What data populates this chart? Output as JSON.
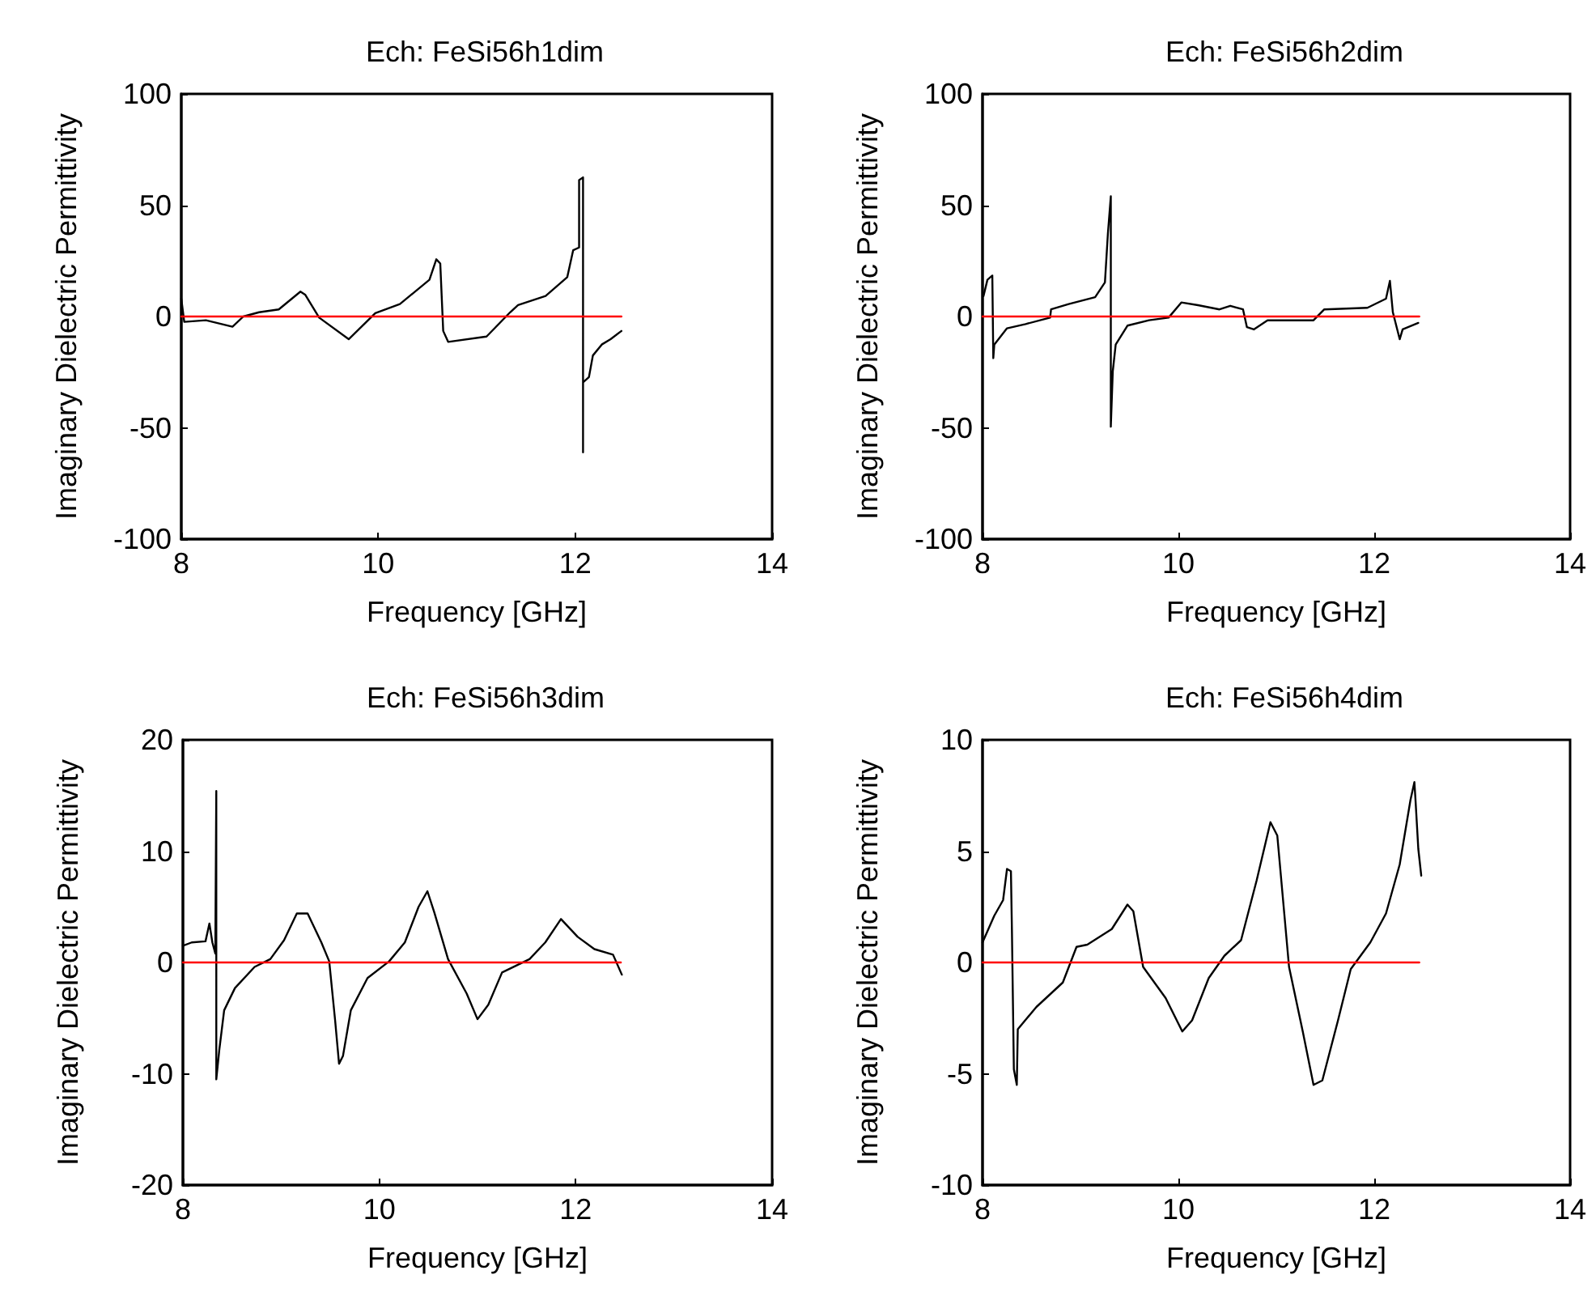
{
  "chart_data": [
    {
      "type": "line",
      "title": "Ech: FeSi56h1dim",
      "xlabel": "Frequency [GHz]",
      "ylabel": "Imaginary Dielectric Permittivity",
      "xlim": [
        8,
        14
      ],
      "xticks": [
        8,
        10,
        12,
        14
      ],
      "ylim": [
        -100,
        100
      ],
      "yticks": [
        -100,
        -50,
        0,
        50,
        100
      ],
      "grid": false,
      "marker": "none",
      "line_style": "solid",
      "series": [
        {
          "color": "#000000",
          "x": [
            8.0,
            8.03,
            8.25,
            8.52,
            8.63,
            8.79,
            8.99,
            9.21,
            9.26,
            9.4,
            9.7,
            9.97,
            10.22,
            10.52,
            10.59,
            10.63,
            10.66,
            10.71,
            11.1,
            11.34,
            11.42,
            11.7,
            11.92,
            11.98,
            12.04,
            12.04,
            12.08,
            12.08,
            12.08,
            12.14,
            12.18,
            12.27,
            12.36,
            12.47
          ],
          "values": [
            8,
            -2.4,
            -1.7,
            -4.6,
            0,
            1.9,
            3.2,
            11.2,
            9.7,
            -0.5,
            -10.2,
            1.5,
            5.6,
            16.5,
            25.7,
            23.8,
            -6.5,
            -11.4,
            -9,
            1.9,
            5.1,
            9.2,
            17.7,
            29.8,
            31,
            61.3,
            62.5,
            -61,
            -29.6,
            -27.2,
            -17.5,
            -12.6,
            -10.2,
            -6.5
          ]
        },
        {
          "color": "#ff0000",
          "x": [
            8,
            12.47
          ],
          "values": [
            0,
            0
          ]
        }
      ]
    },
    {
      "type": "line",
      "title": "Ech: FeSi56h2dim",
      "xlabel": "Frequency [GHz]",
      "ylabel": "Imaginary Dielectric Permittivity",
      "xlim": [
        8,
        14
      ],
      "xticks": [
        8,
        10,
        12,
        14
      ],
      "ylim": [
        -100,
        100
      ],
      "yticks": [
        -100,
        -50,
        0,
        50,
        100
      ],
      "grid": false,
      "marker": "none",
      "line_style": "solid",
      "series": [
        {
          "color": "#000000",
          "x": [
            8.01,
            8.05,
            8.1,
            8.11,
            8.12,
            8.25,
            8.44,
            8.69,
            8.7,
            8.88,
            9.15,
            9.25,
            9.28,
            9.31,
            9.31,
            9.33,
            9.36,
            9.48,
            9.7,
            9.9,
            10.03,
            10.2,
            10.42,
            10.53,
            10.66,
            10.7,
            10.77,
            10.91,
            11.38,
            11.49,
            11.93,
            12.12,
            12.16,
            12.19,
            12.26,
            12.29,
            12.45
          ],
          "values": [
            9.2,
            16.5,
            18.4,
            -18.7,
            -12.6,
            -5.3,
            -3.4,
            -0.5,
            3.2,
            5.6,
            8.7,
            15.3,
            37.1,
            54,
            -49.5,
            -24.7,
            -12.6,
            -4.1,
            -1.7,
            -0.5,
            6.3,
            5.1,
            3.2,
            4.8,
            3.2,
            -4.8,
            -5.8,
            -1.7,
            -1.7,
            3.2,
            3.9,
            8,
            16,
            1.9,
            -10.2,
            -5.8,
            -2.9
          ]
        },
        {
          "color": "#ff0000",
          "x": [
            8,
            12.46
          ],
          "values": [
            0,
            0
          ]
        }
      ]
    },
    {
      "type": "line",
      "title": "Ech: FeSi56h3dim",
      "xlabel": "Frequency [GHz]",
      "ylabel": "Imaginary Dielectric Permittivity",
      "xlim": [
        8,
        14
      ],
      "xticks": [
        8,
        10,
        12,
        14
      ],
      "ylim": [
        -20,
        20
      ],
      "yticks": [
        -20,
        -10,
        0,
        10,
        20
      ],
      "grid": false,
      "marker": "none",
      "line_style": "solid",
      "series": [
        {
          "color": "#000000",
          "x": [
            8.0,
            8.09,
            8.23,
            8.27,
            8.3,
            8.33,
            8.34,
            8.34,
            8.37,
            8.42,
            8.53,
            8.73,
            8.89,
            9.03,
            9.16,
            9.27,
            9.41,
            9.49,
            9.55,
            9.59,
            9.63,
            9.71,
            9.88,
            10.1,
            10.26,
            10.4,
            10.49,
            10.56,
            10.7,
            10.89,
            11.0,
            11.11,
            11.25,
            11.53,
            11.69,
            11.85,
            12.02,
            12.19,
            12.38,
            12.43,
            12.47
          ],
          "values": [
            1.5,
            1.8,
            1.9,
            3.5,
            1.8,
            0.8,
            15.4,
            -10.5,
            -7.9,
            -4.3,
            -2.3,
            -0.4,
            0.3,
            2,
            4.4,
            4.4,
            1.8,
            0.1,
            -5.2,
            -9.1,
            -8.4,
            -4.3,
            -1.4,
            0.1,
            1.8,
            5,
            6.4,
            4.5,
            0.3,
            -2.8,
            -5.1,
            -3.8,
            -0.9,
            0.3,
            1.8,
            3.9,
            2.3,
            1.2,
            0.7,
            -0.3,
            -1.1
          ]
        },
        {
          "color": "#ff0000",
          "x": [
            8,
            12.46
          ],
          "values": [
            0,
            0
          ]
        }
      ]
    },
    {
      "type": "line",
      "title": "Ech: FeSi56h4dim",
      "xlabel": "Frequency [GHz]",
      "ylabel": "Imaginary Dielectric Permittivity",
      "xlim": [
        8,
        14
      ],
      "xticks": [
        8,
        10,
        12,
        14
      ],
      "ylim": [
        -10,
        10
      ],
      "yticks": [
        -10,
        -5,
        0,
        5,
        10
      ],
      "grid": false,
      "marker": "none",
      "line_style": "solid",
      "series": [
        {
          "color": "#000000",
          "x": [
            8.0,
            8.12,
            8.21,
            8.25,
            8.29,
            8.3,
            8.32,
            8.35,
            8.36,
            8.55,
            8.82,
            8.96,
            9.07,
            9.32,
            9.48,
            9.54,
            9.64,
            9.87,
            10.04,
            10.14,
            10.31,
            10.47,
            10.64,
            10.8,
            10.94,
            11.01,
            11.13,
            11.27,
            11.38,
            11.47,
            11.63,
            11.76,
            11.96,
            12.12,
            12.26,
            12.37,
            12.41,
            12.42,
            12.45,
            12.48
          ],
          "values": [
            0.9,
            2.1,
            2.8,
            4.2,
            4.1,
            1.5,
            -4.8,
            -5.5,
            -3,
            -2,
            -0.9,
            0.7,
            0.8,
            1.5,
            2.6,
            2.3,
            -0.2,
            -1.6,
            -3.1,
            -2.6,
            -0.7,
            0.3,
            1,
            3.7,
            6.3,
            5.7,
            -0.2,
            -3.1,
            -5.5,
            -5.3,
            -2.6,
            -0.3,
            0.9,
            2.2,
            4.4,
            7.3,
            8.1,
            7.4,
            5.1,
            3.9
          ]
        },
        {
          "color": "#ff0000",
          "x": [
            8,
            12.46
          ],
          "values": [
            0,
            0
          ]
        }
      ]
    }
  ]
}
